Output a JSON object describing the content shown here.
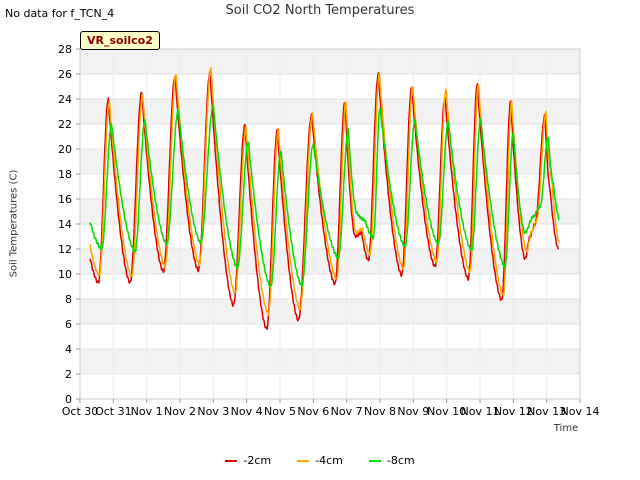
{
  "note": "No data for f_TCN_4",
  "chart_data": {
    "type": "line",
    "title": "Soil CO2 North Temperatures",
    "xlabel": "Time",
    "ylabel": "Soil Temperatures (C)",
    "badge": "VR_soilco2",
    "ylim": [
      0,
      28
    ],
    "yticks": [
      0,
      2,
      4,
      6,
      8,
      10,
      12,
      14,
      16,
      18,
      20,
      22,
      24,
      26,
      28
    ],
    "xlim": [
      0,
      15
    ],
    "xticks": [
      "Oct 30",
      "Oct 31",
      "Nov 1",
      "Nov 2",
      "Nov 3",
      "Nov 4",
      "Nov 5",
      "Nov 6",
      "Nov 7",
      "Nov 8",
      "Nov 9",
      "Nov 10",
      "Nov 11",
      "Nov 12",
      "Nov 13",
      "Nov 14"
    ],
    "grid": true,
    "legend": "bottom",
    "x_unit": "days since Oct 30",
    "series": [
      {
        "name": "-2cm",
        "color": "#dd0000",
        "daily": [
          [
            0.3,
            11.3,
            0.55,
            9.3,
            0.85,
            24.0,
            1.5,
            9.3,
            1.85,
            24.5,
            2.5,
            10.2,
            2.85,
            25.8,
            3.55,
            10.3,
            3.9,
            26.1,
            4.6,
            7.5,
            4.95,
            21.9,
            5.6,
            5.6,
            5.92,
            21.5,
            6.55,
            6.3,
            6.95,
            22.7,
            7.65,
            9.2,
            7.95,
            23.8,
            8.25,
            13.0,
            8.45,
            13.3,
            8.65,
            11.1,
            8.95,
            26.0,
            9.65,
            9.9,
            9.95,
            24.9,
            10.65,
            10.6,
            10.95,
            24.1,
            11.65,
            9.6,
            11.92,
            25.2,
            12.65,
            7.9,
            12.92,
            23.8,
            13.35,
            11.2,
            13.5,
            13.0,
            13.65,
            14.0,
            13.95,
            22.7,
            14.1,
            16.8,
            14.35,
            12.0
          ]
        ]
      },
      {
        "name": "-4cm",
        "color": "#ffa500",
        "daily": [
          [
            0.3,
            12.3,
            0.58,
            9.9,
            0.88,
            23.8,
            1.55,
            9.8,
            1.88,
            24.3,
            2.55,
            10.6,
            2.88,
            26.0,
            3.58,
            10.8,
            3.93,
            26.4,
            4.65,
            8.5,
            4.98,
            21.7,
            5.65,
            6.8,
            5.95,
            21.5,
            6.6,
            7.2,
            6.98,
            22.8,
            7.7,
            9.6,
            7.98,
            23.8,
            8.28,
            13.3,
            8.48,
            13.6,
            8.7,
            11.6,
            8.98,
            26.0,
            9.7,
            10.4,
            9.98,
            25.0,
            10.7,
            11.0,
            10.98,
            24.8,
            11.7,
            10.2,
            11.95,
            25.2,
            12.7,
            8.3,
            12.95,
            23.8,
            13.4,
            11.8,
            13.55,
            13.4,
            13.7,
            14.3,
            13.98,
            22.9,
            14.15,
            17.7,
            14.38,
            12.5
          ]
        ]
      },
      {
        "name": "-8cm",
        "color": "#00dd00",
        "daily": [
          [
            0.3,
            14.2,
            0.65,
            12.0,
            0.95,
            22.0,
            1.65,
            11.8,
            1.95,
            22.3,
            2.6,
            12.4,
            2.95,
            23.1,
            3.62,
            12.5,
            4.0,
            23.5,
            4.72,
            10.5,
            5.05,
            20.6,
            5.72,
            9.0,
            6.03,
            19.8,
            6.65,
            9.1,
            7.0,
            20.4,
            7.75,
            11.3,
            8.05,
            21.5,
            8.3,
            14.9,
            8.55,
            14.3,
            8.8,
            12.9,
            9.0,
            23.3,
            9.75,
            12.2,
            10.05,
            22.3,
            10.75,
            12.4,
            11.05,
            22.2,
            11.75,
            11.9,
            12.02,
            22.4,
            12.75,
            10.6,
            13.0,
            21.3,
            13.35,
            13.3,
            13.6,
            14.6,
            13.8,
            15.4,
            14.05,
            21.0,
            14.2,
            17.2,
            14.38,
            14.4
          ]
        ]
      }
    ]
  }
}
